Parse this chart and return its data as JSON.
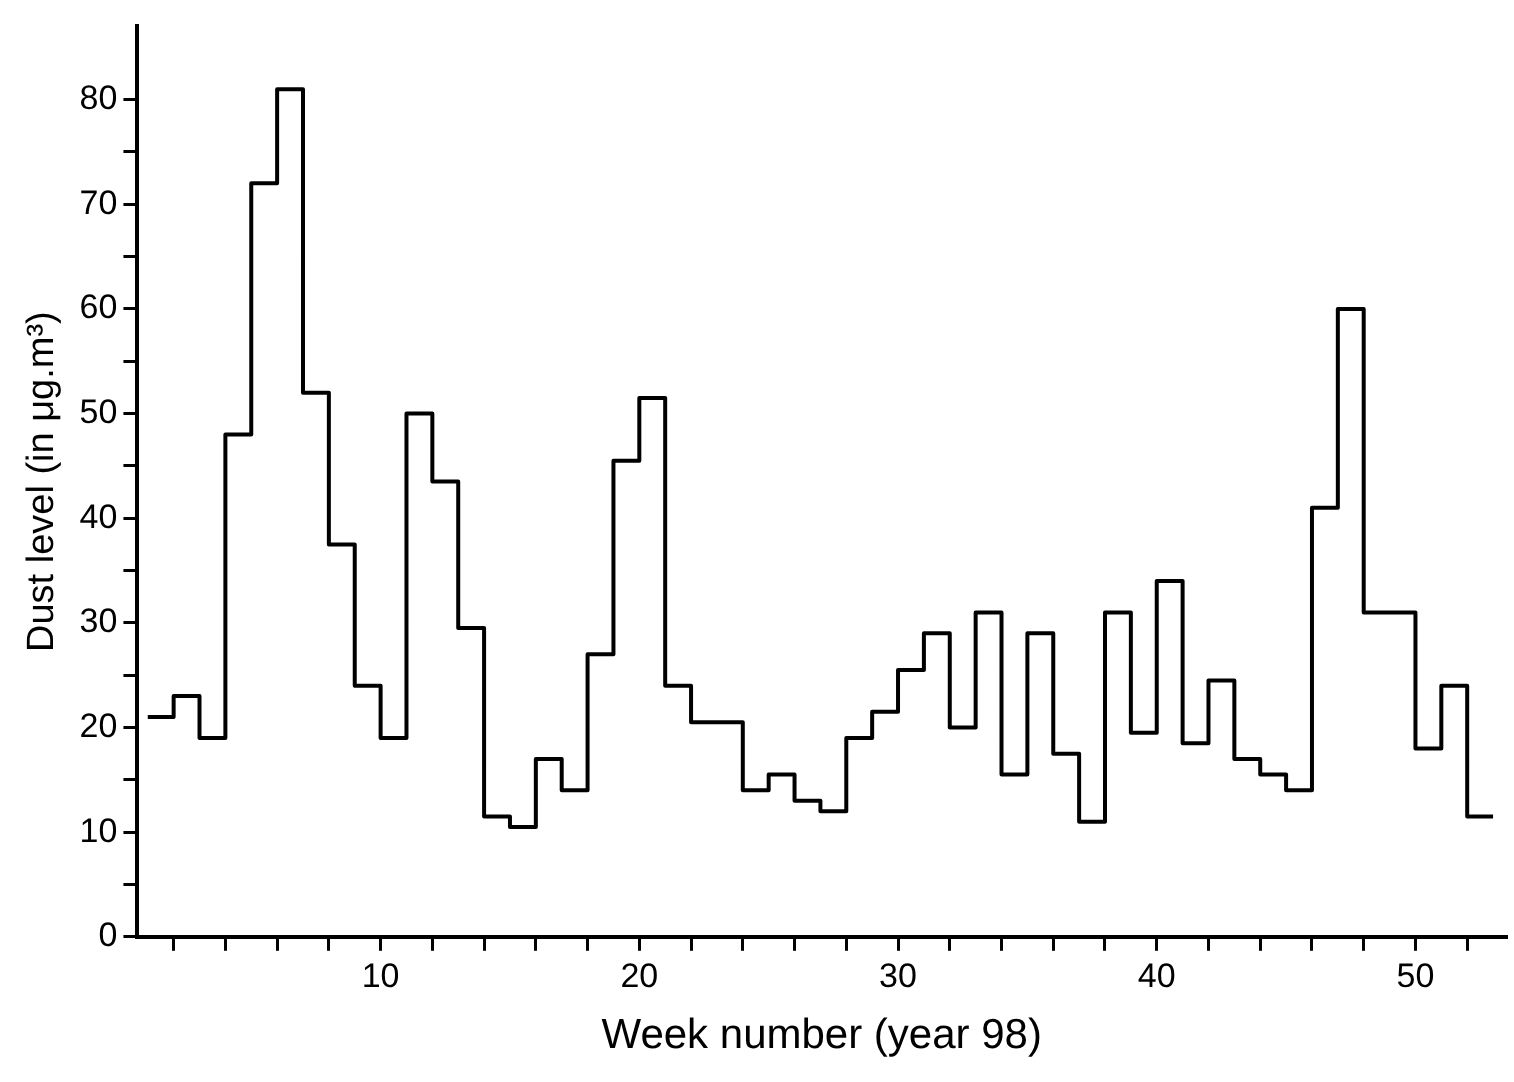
{
  "chart_data": {
    "type": "histogram",
    "xlabel": "Week number (year 98)",
    "ylabel": "Dust level (in μg.m³)",
    "color": "#000000",
    "bins": [
      1,
      2,
      3,
      4,
      5,
      6,
      7,
      8,
      9,
      10,
      11,
      12,
      13,
      14,
      15,
      16,
      17,
      18,
      19,
      20,
      21,
      22,
      23,
      24,
      25,
      26,
      27,
      28,
      29,
      30,
      31,
      32,
      33,
      34,
      35,
      36,
      37,
      38,
      39,
      40,
      41,
      42,
      43,
      44,
      45,
      46,
      47,
      48,
      49,
      50,
      51,
      52,
      53
    ],
    "values": [
      21,
      23,
      19,
      48,
      72,
      81,
      52,
      37.5,
      24,
      19,
      50,
      43.5,
      29.5,
      11.5,
      10.5,
      17,
      14,
      27,
      45.5,
      51.5,
      24,
      20.5,
      20.5,
      14,
      15.5,
      13,
      12,
      19,
      21.5,
      25.5,
      29,
      20,
      31,
      15.5,
      29,
      17.5,
      11,
      31,
      19.5,
      34,
      18.5,
      24.5,
      17,
      15.5,
      14,
      41,
      60,
      31,
      31,
      18,
      24,
      11.5
    ],
    "xlim": [
      0.6,
      53.5
    ],
    "xticks": [
      {
        "value": 2,
        "label": null
      },
      {
        "value": 4,
        "label": null
      },
      {
        "value": 6,
        "label": null
      },
      {
        "value": 8,
        "label": null
      },
      10,
      {
        "value": 12,
        "label": null
      },
      {
        "value": 14,
        "label": null
      },
      {
        "value": 16,
        "label": null
      },
      {
        "value": 18,
        "label": null
      },
      20,
      {
        "value": 22,
        "label": null
      },
      {
        "value": 24,
        "label": null
      },
      {
        "value": 26,
        "label": null
      },
      {
        "value": 28,
        "label": null
      },
      30,
      {
        "value": 32,
        "label": null
      },
      {
        "value": 34,
        "label": null
      },
      {
        "value": 36,
        "label": null
      },
      {
        "value": 38,
        "label": null
      },
      40,
      {
        "value": 42,
        "label": null
      },
      {
        "value": 44,
        "label": null
      },
      {
        "value": 46,
        "label": null
      },
      {
        "value": 48,
        "label": null
      },
      50,
      {
        "value": 52,
        "label": null
      }
    ],
    "ylim": [
      0,
      87
    ],
    "yticks": [
      0,
      {
        "value": 5,
        "label": null
      },
      10,
      {
        "value": 15,
        "label": null
      },
      20,
      {
        "value": 25,
        "label": null
      },
      30,
      {
        "value": 35,
        "label": null
      },
      40,
      {
        "value": 45,
        "label": null
      },
      50,
      {
        "value": 55,
        "label": null
      },
      60,
      {
        "value": 65,
        "label": null
      },
      70,
      {
        "value": 75,
        "label": null
      },
      80
    ],
    "grid": false,
    "legend": false
  }
}
